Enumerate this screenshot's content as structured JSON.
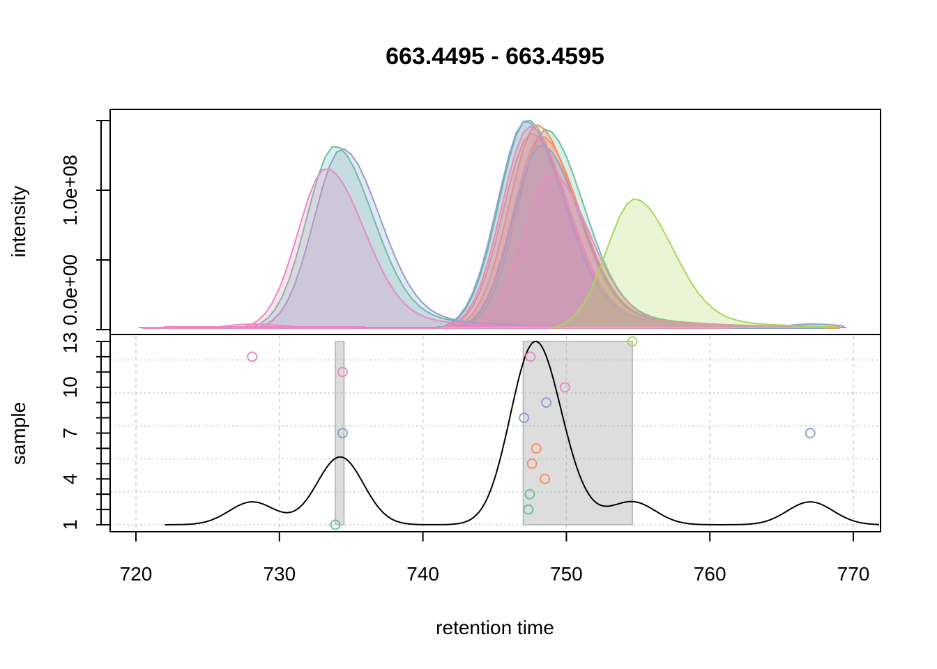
{
  "chart_data": {
    "type": "area",
    "title": "663.4495 - 663.4595",
    "xlabel": "retention time",
    "xlim": [
      718.2,
      771.9
    ],
    "x_ticks": [
      720,
      730,
      740,
      750,
      760,
      770
    ],
    "x_tick_labels": [
      "720",
      "730",
      "740",
      "750",
      "760",
      "770"
    ],
    "upper_panel": {
      "ylabel": "intensity",
      "ylim": [
        0,
        160000000
      ],
      "y_ticks": [
        0,
        50000000,
        100000000,
        150000000
      ],
      "y_tick_labels": [
        "0.0e+00",
        "1.0e+08"
      ],
      "peaks": [
        {
          "sample": 1,
          "color": "#66C2A5",
          "rt": 733.9,
          "intensity": 132000000,
          "rtmin": 720.2,
          "rtmax": 769.5
        },
        {
          "sample": 2,
          "color": "#66C2A5",
          "rt": 747.3,
          "intensity": 151000000,
          "rtmin": 742.0,
          "rtmax": 769.0
        },
        {
          "sample": 3,
          "color": "#66C2A5",
          "rt": 748.6,
          "intensity": 144000000,
          "rtmin": 741.0,
          "rtmax": 768.0
        },
        {
          "sample": 4,
          "color": "#FC8D62",
          "rt": 748.0,
          "intensity": 147000000,
          "rtmin": 741.5,
          "rtmax": 769.0
        },
        {
          "sample": 5,
          "color": "#FC8D62",
          "rt": 747.6,
          "intensity": 141000000,
          "rtmin": 742.0,
          "rtmax": 769.0
        },
        {
          "sample": 6,
          "color": "#FC8D62",
          "rt": 748.3,
          "intensity": 139000000,
          "rtmin": 742.0,
          "rtmax": 769.0
        },
        {
          "sample": 7,
          "color": "#8DA0CB",
          "rt": 734.4,
          "intensity": 130000000,
          "rtmin": 720.5,
          "rtmax": 758.0
        },
        {
          "sample": 7,
          "color": "#8DA0CB",
          "rt": 767.0,
          "intensity": 4000000,
          "rtmin": 762.2,
          "rtmax": 769.4
        },
        {
          "sample": 8,
          "color": "#8DA0CB",
          "rt": 747.2,
          "intensity": 150000000,
          "rtmin": 741.5,
          "rtmax": 768.0
        },
        {
          "sample": 9,
          "color": "#8DA0CB",
          "rt": 748.3,
          "intensity": 133000000,
          "rtmin": 742.0,
          "rtmax": 769.0
        },
        {
          "sample": 10,
          "color": "#E78AC3",
          "rt": 749.0,
          "intensity": 112000000,
          "rtmin": 742.5,
          "rtmax": 769.0
        },
        {
          "sample": 11,
          "color": "#E78AC3",
          "rt": 733.3,
          "intensity": 116000000,
          "rtmin": 720.5,
          "rtmax": 761.5
        },
        {
          "sample": 12,
          "color": "#E78AC3",
          "rt": 728.1,
          "intensity": 4000000,
          "rtmin": 722.0,
          "rtmax": 736.0
        },
        {
          "sample": 12,
          "color": "#E78AC3",
          "rt": 747.5,
          "intensity": 146000000,
          "rtmin": 741.5,
          "rtmax": 769.0
        },
        {
          "sample": 13,
          "color": "#A6D854",
          "rt": 754.8,
          "intensity": 94000000,
          "rtmin": 741.2,
          "rtmax": 769.0
        }
      ]
    },
    "lower_panel": {
      "ylabel": "sample",
      "ylim": [
        0.6,
        13.4
      ],
      "y_ticks": [
        1,
        2,
        3,
        4,
        5,
        6,
        7,
        8,
        9,
        10,
        11,
        12,
        13
      ],
      "y_tick_labels": [
        "1",
        "4",
        "7",
        "10",
        "13"
      ],
      "points": [
        {
          "sample": 1,
          "rt": 733.9,
          "color": "#66C2A5"
        },
        {
          "sample": 2,
          "rt": 747.35,
          "color": "#66C2A5"
        },
        {
          "sample": 3,
          "rt": 747.45,
          "color": "#66C2A5"
        },
        {
          "sample": 4,
          "rt": 748.5,
          "color": "#FC8D62"
        },
        {
          "sample": 5,
          "rt": 747.6,
          "color": "#FC8D62"
        },
        {
          "sample": 6,
          "rt": 747.9,
          "color": "#FC8D62"
        },
        {
          "sample": 7,
          "rt": 734.4,
          "color": "#8DA0CB"
        },
        {
          "sample": 7,
          "rt": 767.0,
          "color": "#8DA0CB"
        },
        {
          "sample": 8,
          "rt": 747.05,
          "color": "#8DA0CB"
        },
        {
          "sample": 9,
          "rt": 748.6,
          "color": "#8DA0CB"
        },
        {
          "sample": 10,
          "rt": 749.9,
          "color": "#E78AC3"
        },
        {
          "sample": 11,
          "rt": 734.4,
          "color": "#E78AC3"
        },
        {
          "sample": 12,
          "rt": 728.1,
          "color": "#E78AC3"
        },
        {
          "sample": 12,
          "rt": 747.5,
          "color": "#E78AC3"
        },
        {
          "sample": 13,
          "rt": 754.6,
          "color": "#A6D854"
        }
      ],
      "feature_ranges": [
        {
          "rtmin": 733.9,
          "rtmax": 734.5
        },
        {
          "rtmin": 747.0,
          "rtmax": 754.6
        }
      ],
      "density_bandwidth": 1.6
    }
  }
}
